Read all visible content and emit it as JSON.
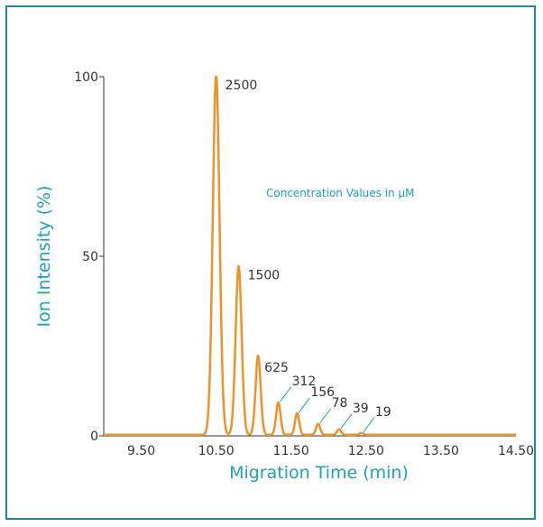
{
  "chart_data": {
    "type": "line",
    "xlabel": "Migration Time (min)",
    "ylabel": "Ion Intensity (%)",
    "annotation": "Concentration Values in µM",
    "xlim": [
      9.0,
      14.5
    ],
    "ylim": [
      0,
      100
    ],
    "x_ticks": [
      "9.50",
      "10.50",
      "11.50",
      "12.50",
      "13.50",
      "14.50"
    ],
    "y_ticks": [
      "0",
      "50",
      "100"
    ],
    "series": [
      {
        "peaks": [
          {
            "time": 10.5,
            "intensity": 100,
            "label": "2500"
          },
          {
            "time": 10.8,
            "intensity": 47,
            "label": "1500"
          },
          {
            "time": 11.06,
            "intensity": 22,
            "label": "625"
          },
          {
            "time": 11.33,
            "intensity": 9,
            "label": "312"
          },
          {
            "time": 11.58,
            "intensity": 6,
            "label": "156"
          },
          {
            "time": 11.86,
            "intensity": 3,
            "label": "78"
          },
          {
            "time": 12.14,
            "intensity": 1.5,
            "label": "39"
          },
          {
            "time": 12.44,
            "intensity": 0.5,
            "label": "19"
          }
        ]
      }
    ],
    "colors": {
      "line": "#f0922a",
      "axis_label": "#1ea1b8",
      "leader": "#1ea1b8",
      "frame": "#1f8a9a"
    }
  }
}
